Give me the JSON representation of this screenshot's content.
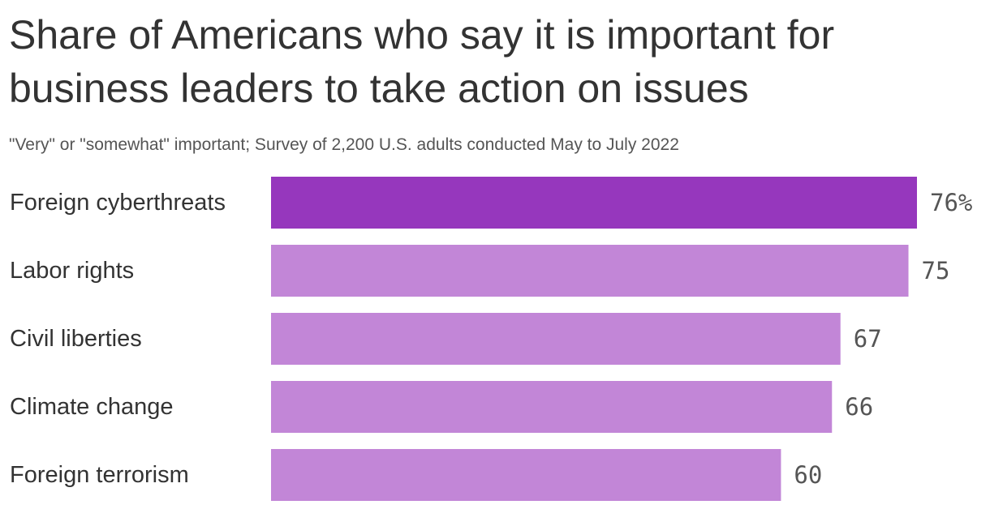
{
  "header": {
    "title": "Share of Americans who say it is important for business leaders to take action on issues",
    "subtitle": "\"Very\" or \"somewhat\" important; Survey of 2,200 U.S. adults conducted May to July 2022"
  },
  "colors": {
    "highlight": "#9637bd",
    "bar": "#c286d7"
  },
  "chart_data": {
    "type": "bar",
    "orientation": "horizontal",
    "categories": [
      "Foreign cyberthreats",
      "Labor rights",
      "Civil liberties",
      "Climate change",
      "Foreign terrorism"
    ],
    "values": [
      76,
      75,
      67,
      66,
      60
    ],
    "value_labels": [
      "76%",
      "75",
      "67",
      "66",
      "60"
    ],
    "highlight_index": 0,
    "xlim": [
      0,
      76
    ],
    "grid": false,
    "legend": "none"
  }
}
